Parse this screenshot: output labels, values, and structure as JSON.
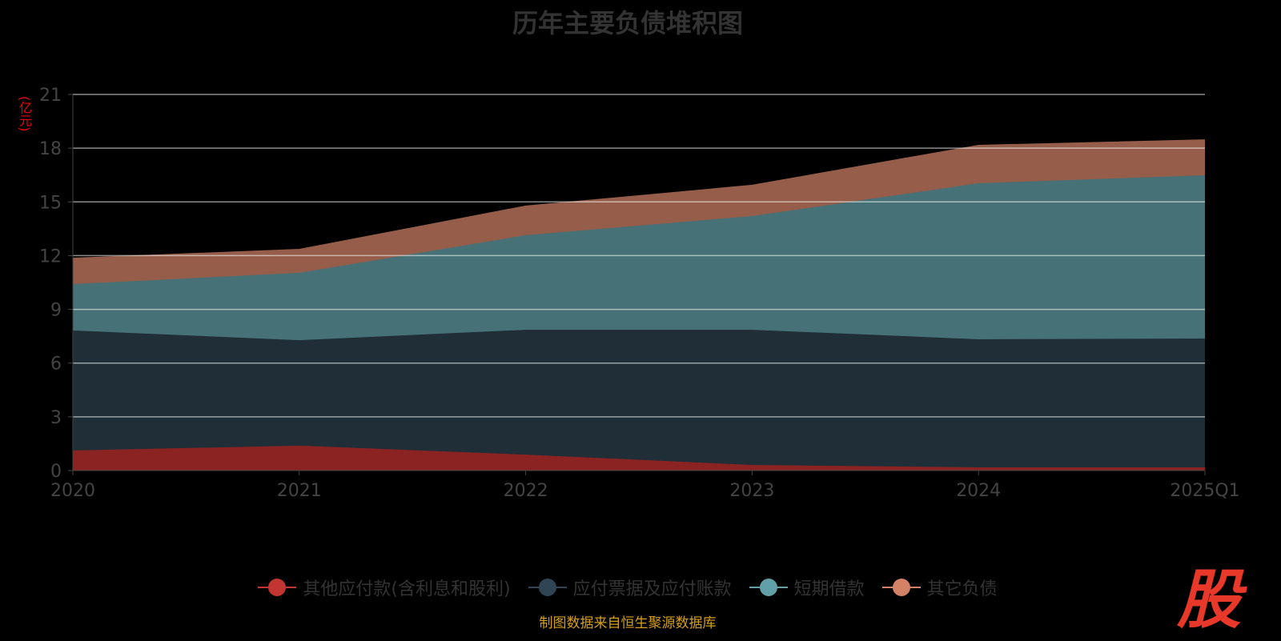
{
  "title": "历年主要负债堆积图",
  "unit": "(亿元)",
  "source": "制图数据来自恒生聚源数据库",
  "logo_text": "股",
  "chart_data": {
    "type": "area",
    "stacked": true,
    "title": "历年主要负债堆积图",
    "ylabel": "(亿元)",
    "ylim": [
      0,
      21
    ],
    "yticks": [
      0,
      3,
      6,
      9,
      12,
      15,
      18,
      21
    ],
    "categories": [
      "2020",
      "2021",
      "2022",
      "2023",
      "2024",
      "2025Q1"
    ],
    "grid": true,
    "legend_position": "bottom",
    "series": [
      {
        "name": "其他应付款(含利息和股利)",
        "color": "#c23531",
        "fill": "#8b2323",
        "values": [
          1.12,
          1.39,
          0.89,
          0.31,
          0.18,
          0.18
        ]
      },
      {
        "name": "应付票据及应付账款",
        "color": "#2f4554",
        "fill": "#202e38",
        "values": [
          6.7,
          5.89,
          6.97,
          7.55,
          7.15,
          7.19
        ]
      },
      {
        "name": "短期借款",
        "color": "#61a0a8",
        "fill": "#467176",
        "values": [
          2.59,
          3.76,
          5.28,
          6.35,
          8.71,
          9.12
        ]
      },
      {
        "name": "其它负债",
        "color": "#d48265",
        "fill": "#955d4a",
        "values": [
          1.43,
          1.29,
          1.61,
          1.7,
          2.1,
          1.96
        ]
      }
    ]
  }
}
